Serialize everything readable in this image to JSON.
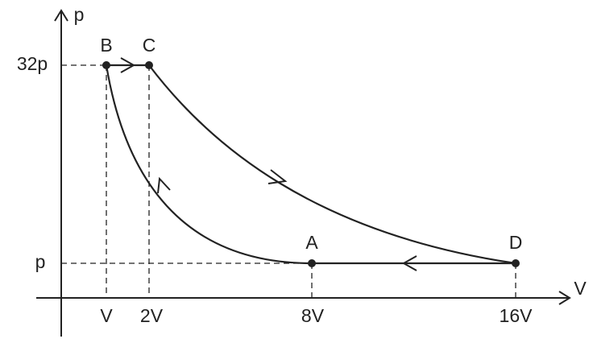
{
  "axes": {
    "y_label": "p",
    "x_label": "V"
  },
  "y_ticks": [
    "32p",
    "p"
  ],
  "x_ticks": [
    "V",
    "2V",
    "8V",
    "16V"
  ],
  "points": [
    {
      "label": "A"
    },
    {
      "label": "B"
    },
    {
      "label": "C"
    },
    {
      "label": "D"
    }
  ]
}
